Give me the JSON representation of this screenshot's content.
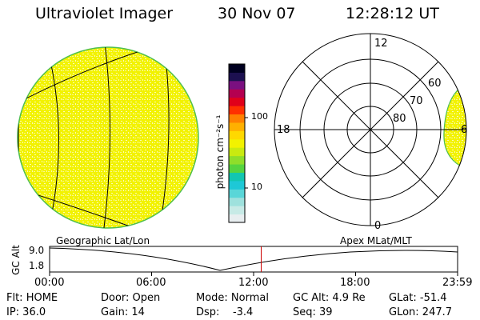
{
  "header": {
    "title": "Ultraviolet Imager",
    "date": "30 Nov 07",
    "time": "12:28:12 UT"
  },
  "colorbar": {
    "unit_label": "photon cm⁻²s⁻¹",
    "tick_labels": [
      "100",
      "10"
    ],
    "colors": [
      "#e8eef0",
      "#c7eae6",
      "#9ee1dd",
      "#59d6d8",
      "#1ec8d6",
      "#12c6b0",
      "#55d43f",
      "#8fde2a",
      "#c9ea10",
      "#f2f200",
      "#ffd800",
      "#ffb000",
      "#ff8000",
      "#ff3000",
      "#e0001a",
      "#b40050",
      "#7a1080",
      "#1c1050",
      "#000020"
    ]
  },
  "left_panel": {
    "caption": "Geographic Lat/Lon",
    "disk_color": "#f2f200"
  },
  "right_panel": {
    "caption": "Apex MLat/MLT",
    "mlt_labels": [
      "12",
      "18",
      "6",
      "0"
    ],
    "mlat_labels": [
      "60",
      "70",
      "80"
    ]
  },
  "timeline": {
    "axis_label": "GC Alt",
    "y_labels": [
      "9.0",
      "1.8"
    ],
    "x_labels": [
      "00:00",
      "06:00",
      "12:00",
      "18:00",
      "23:59"
    ],
    "marker_time": "12:28",
    "marker_color": "#cc0000"
  },
  "status": {
    "flt": "Flt: HOME",
    "ip": "IP: 36.0",
    "door": "Door: Open",
    "gain": "Gain: 14",
    "mode": "Mode: Normal",
    "dsp": "Dsp:    -3.4",
    "gc_alt": "GC Alt: 4.9 Re",
    "seq": "Seq: 39",
    "glat": "GLat: -51.4",
    "glon": "GLon: 247.7"
  }
}
